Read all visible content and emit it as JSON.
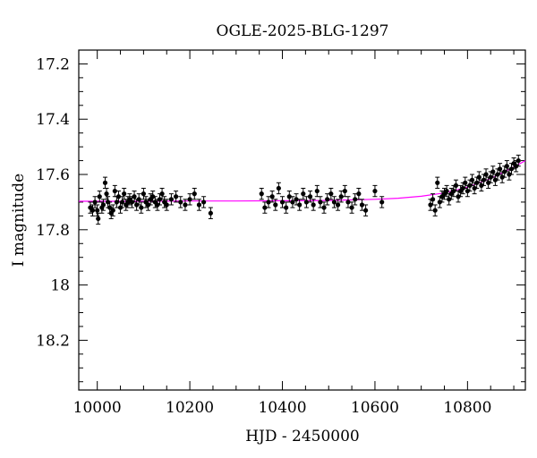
{
  "chart_data": {
    "type": "scatter",
    "title": "OGLE-2025-BLG-1297",
    "xlabel": "HJD - 2450000",
    "ylabel": "I magnitude",
    "xlim": [
      9960,
      10925
    ],
    "ylim": [
      18.38,
      17.15
    ],
    "y_inverted": true,
    "x_ticks": [
      10000,
      10200,
      10400,
      10600,
      10800
    ],
    "y_ticks": [
      17.2,
      17.4,
      17.6,
      17.8,
      18,
      18.2
    ],
    "y_tick_labels": [
      "17.2",
      "17.4",
      "17.6",
      "17.8",
      "18",
      "18.2"
    ],
    "grid": false,
    "colors": {
      "points": "#000000",
      "model": "#ff00ff"
    },
    "series": [
      {
        "type": "errorbar",
        "x": [
          9985,
          9990,
          9995,
          10000,
          10002,
          10005,
          10010,
          10013,
          10017,
          10020,
          10023,
          10027,
          10030,
          10034,
          10038,
          10042,
          10046,
          10050,
          10054,
          10058,
          10062,
          10066,
          10070,
          10075,
          10080,
          10085,
          10090,
          10095,
          10100,
          10105,
          10110,
          10115,
          10120,
          10125,
          10130,
          10135,
          10140,
          10145,
          10150,
          10160,
          10170,
          10180,
          10190,
          10200,
          10210,
          10220,
          10230,
          10245,
          10355,
          10362,
          10370,
          10378,
          10385,
          10392,
          10400,
          10408,
          10415,
          10422,
          10430,
          10437,
          10445,
          10452,
          10460,
          10467,
          10475,
          10482,
          10490,
          10497,
          10505,
          10512,
          10520,
          10527,
          10535,
          10542,
          10550,
          10557,
          10565,
          10572,
          10580,
          10600,
          10615,
          10720,
          10725,
          10730,
          10735,
          10740,
          10745,
          10750,
          10755,
          10760,
          10765,
          10770,
          10775,
          10780,
          10785,
          10790,
          10795,
          10800,
          10805,
          10810,
          10815,
          10820,
          10825,
          10830,
          10835,
          10840,
          10845,
          10850,
          10855,
          10860,
          10865,
          10870,
          10875,
          10880,
          10885,
          10890,
          10895,
          10900,
          10905,
          10910
        ],
        "y": [
          17.72,
          17.73,
          17.7,
          17.73,
          17.76,
          17.68,
          17.72,
          17.71,
          17.63,
          17.67,
          17.7,
          17.72,
          17.74,
          17.73,
          17.66,
          17.7,
          17.68,
          17.72,
          17.7,
          17.67,
          17.71,
          17.7,
          17.69,
          17.7,
          17.68,
          17.71,
          17.69,
          17.72,
          17.67,
          17.7,
          17.71,
          17.69,
          17.68,
          17.7,
          17.71,
          17.69,
          17.67,
          17.7,
          17.71,
          17.69,
          17.68,
          17.7,
          17.71,
          17.69,
          17.67,
          17.71,
          17.7,
          17.74,
          17.67,
          17.72,
          17.7,
          17.68,
          17.71,
          17.65,
          17.7,
          17.72,
          17.68,
          17.7,
          17.69,
          17.71,
          17.67,
          17.7,
          17.68,
          17.71,
          17.66,
          17.7,
          17.72,
          17.69,
          17.67,
          17.7,
          17.71,
          17.68,
          17.66,
          17.7,
          17.72,
          17.69,
          17.67,
          17.71,
          17.73,
          17.66,
          17.7,
          17.71,
          17.69,
          17.73,
          17.63,
          17.7,
          17.68,
          17.67,
          17.66,
          17.69,
          17.67,
          17.66,
          17.64,
          17.68,
          17.66,
          17.65,
          17.63,
          17.66,
          17.64,
          17.62,
          17.65,
          17.63,
          17.61,
          17.64,
          17.62,
          17.6,
          17.63,
          17.61,
          17.59,
          17.62,
          17.6,
          17.58,
          17.61,
          17.59,
          17.57,
          17.6,
          17.58,
          17.56,
          17.57,
          17.55
        ],
        "err": 0.02
      },
      {
        "type": "line",
        "x": [
          9960,
          10000,
          10100,
          10200,
          10300,
          10400,
          10500,
          10600,
          10650,
          10700,
          10750,
          10800,
          10850,
          10900,
          10925
        ],
        "y": [
          17.697,
          17.697,
          17.697,
          17.696,
          17.696,
          17.695,
          17.694,
          17.69,
          17.686,
          17.679,
          17.667,
          17.646,
          17.615,
          17.573,
          17.55
        ]
      }
    ]
  }
}
